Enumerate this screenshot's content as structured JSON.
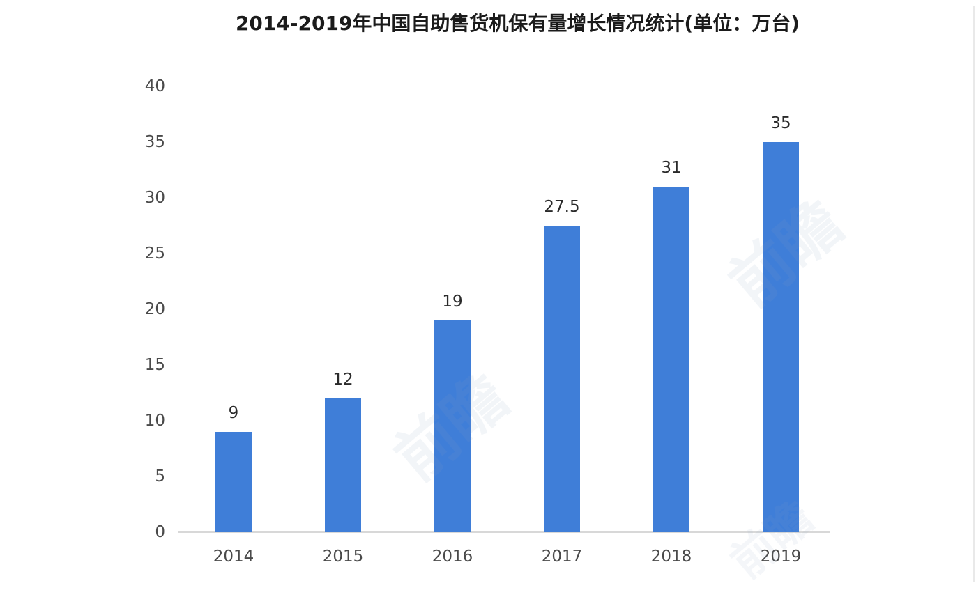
{
  "chart_data": {
    "type": "bar",
    "title": "2014-2019年中国自助售货机保有量增长情况统计(单位：万台)",
    "unit": "万台",
    "categories": [
      "2014",
      "2015",
      "2016",
      "2017",
      "2018",
      "2019"
    ],
    "values": [
      9,
      12,
      19,
      27.5,
      31,
      35
    ],
    "value_labels": [
      "9",
      "12",
      "19",
      "27.5",
      "31",
      "35"
    ],
    "yticks": [
      0,
      5,
      10,
      15,
      20,
      25,
      30,
      35,
      40
    ],
    "ylim": [
      0,
      40
    ],
    "xlabel": "",
    "ylabel": "",
    "grid": false,
    "legend_position": "none"
  },
  "colors": {
    "bar": "#3f7ed8",
    "title_text": "#1b1b1b",
    "tick_text": "#4a4a4a",
    "value_text": "#2a2a2a",
    "axis_line": "#d8d8d8",
    "edge_line": "#e9e9e9",
    "watermark": "#8ba3c4"
  },
  "watermark": {
    "text": "前瞻"
  }
}
